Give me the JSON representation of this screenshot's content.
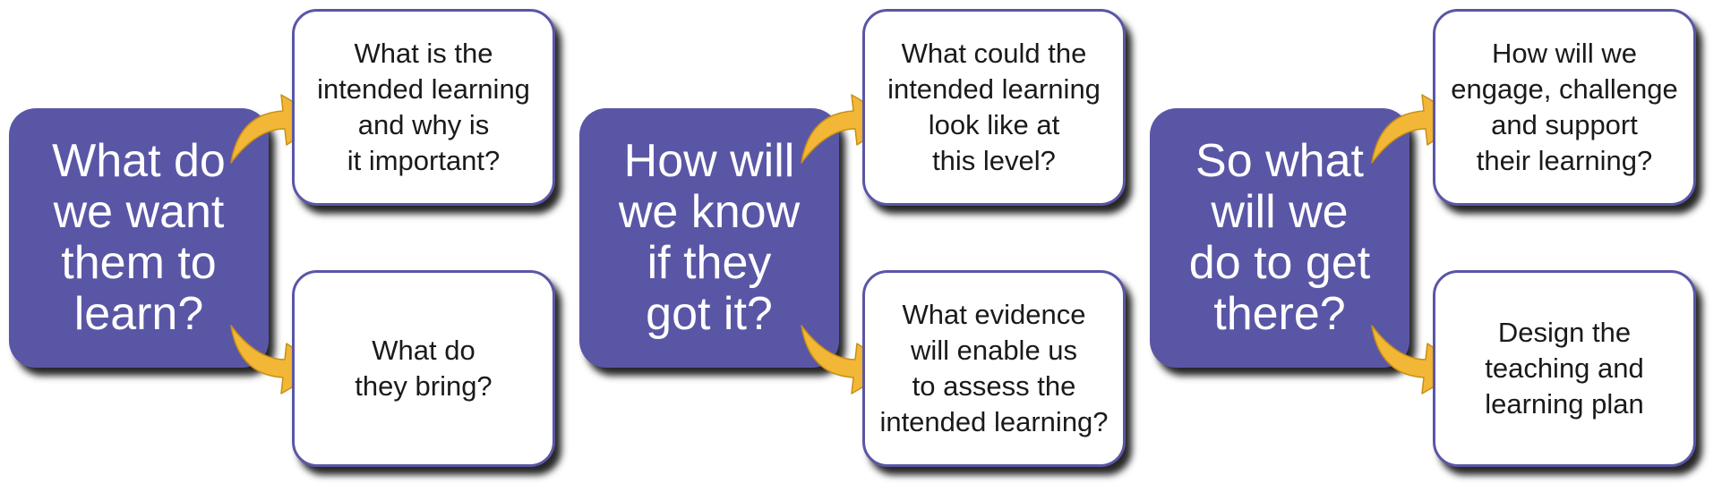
{
  "colors": {
    "question_box": "#5a56a6",
    "sub_box_border": "#5a56a6",
    "arrow": "#f2b736",
    "text_dark": "#1a1a1a",
    "text_light": "#ffffff"
  },
  "groups": [
    {
      "question": "What do\nwe want\nthem to\nlearn?",
      "top_box": "What is the\nintended learning\nand why is\nit important?",
      "bottom_box": "What do\nthey bring?"
    },
    {
      "question": "How will\nwe know\nif they\ngot it?",
      "top_box": "What could the\nintended learning\nlook like at\nthis level?",
      "bottom_box": "What evidence\nwill enable us\nto assess the\nintended learning?"
    },
    {
      "question": "So what\nwill we\ndo to get\nthere?",
      "top_box": "How will we\nengage, challenge\nand support\ntheir learning?",
      "bottom_box": "Design the\nteaching and\nlearning plan"
    }
  ]
}
